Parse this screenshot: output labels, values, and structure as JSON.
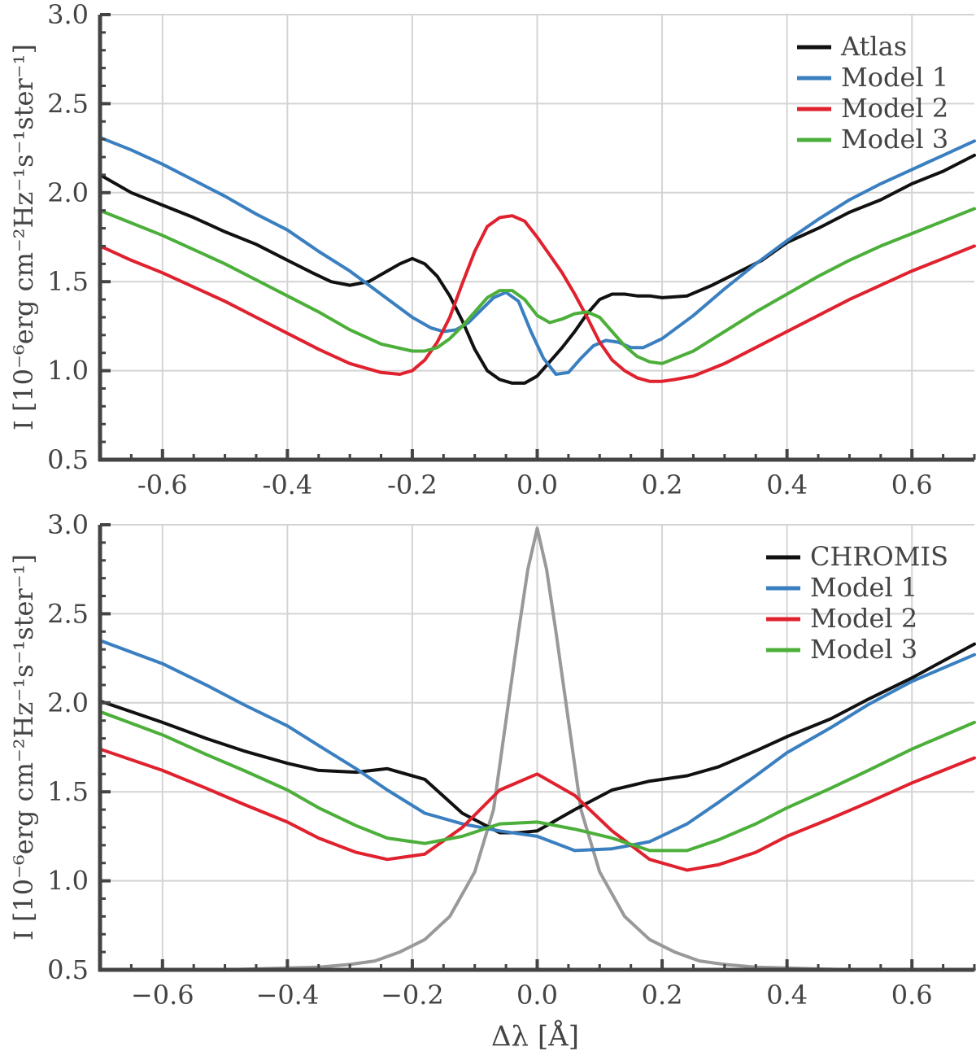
{
  "figure": {
    "xlabel": "Δλ [Å]"
  },
  "chart_data": [
    {
      "type": "line",
      "title": "",
      "xlabel": "",
      "ylabel": "I [10⁻⁶erg cm⁻²Hz⁻¹s⁻¹ster⁻¹]",
      "xlim": [
        -0.7,
        0.7
      ],
      "ylim": [
        0.5,
        3.0
      ],
      "xticks": [
        "-0.6",
        "-0.4",
        "-0.2",
        "0.0",
        "0.2",
        "0.4",
        "0.6"
      ],
      "yticks": [
        "0.5",
        "1.0",
        "1.5",
        "2.0",
        "2.5",
        "3.0"
      ],
      "legend": {
        "position": "top-right"
      },
      "series": [
        {
          "name": "Atlas",
          "color": "#111111",
          "in_legend": true,
          "x": [
            -0.7,
            -0.65,
            -0.6,
            -0.55,
            -0.5,
            -0.45,
            -0.4,
            -0.36,
            -0.33,
            -0.3,
            -0.27,
            -0.24,
            -0.22,
            -0.2,
            -0.18,
            -0.16,
            -0.14,
            -0.12,
            -0.1,
            -0.08,
            -0.06,
            -0.04,
            -0.02,
            0.0,
            0.02,
            0.04,
            0.06,
            0.08,
            0.1,
            0.12,
            0.14,
            0.16,
            0.18,
            0.2,
            0.24,
            0.28,
            0.32,
            0.36,
            0.4,
            0.45,
            0.5,
            0.55,
            0.6,
            0.65,
            0.7
          ],
          "y": [
            2.1,
            2.0,
            1.93,
            1.86,
            1.78,
            1.71,
            1.62,
            1.55,
            1.5,
            1.48,
            1.5,
            1.56,
            1.6,
            1.63,
            1.6,
            1.53,
            1.42,
            1.28,
            1.12,
            1.0,
            0.95,
            0.93,
            0.93,
            0.97,
            1.05,
            1.13,
            1.22,
            1.32,
            1.4,
            1.43,
            1.43,
            1.42,
            1.42,
            1.41,
            1.42,
            1.48,
            1.55,
            1.62,
            1.72,
            1.8,
            1.89,
            1.96,
            2.05,
            2.12,
            2.21
          ]
        },
        {
          "name": "Model 1",
          "color": "#3a7fc0",
          "in_legend": true,
          "x": [
            -0.7,
            -0.65,
            -0.6,
            -0.55,
            -0.5,
            -0.45,
            -0.4,
            -0.35,
            -0.3,
            -0.25,
            -0.2,
            -0.17,
            -0.15,
            -0.13,
            -0.11,
            -0.09,
            -0.07,
            -0.05,
            -0.03,
            -0.01,
            0.01,
            0.03,
            0.05,
            0.07,
            0.09,
            0.11,
            0.13,
            0.15,
            0.17,
            0.2,
            0.25,
            0.3,
            0.35,
            0.4,
            0.45,
            0.5,
            0.55,
            0.6,
            0.65,
            0.7
          ],
          "y": [
            2.31,
            2.24,
            2.16,
            2.07,
            1.98,
            1.88,
            1.79,
            1.67,
            1.56,
            1.43,
            1.3,
            1.24,
            1.22,
            1.23,
            1.27,
            1.34,
            1.41,
            1.44,
            1.39,
            1.22,
            1.07,
            0.98,
            0.99,
            1.07,
            1.14,
            1.17,
            1.16,
            1.13,
            1.13,
            1.18,
            1.31,
            1.46,
            1.6,
            1.73,
            1.85,
            1.96,
            2.05,
            2.13,
            2.21,
            2.29
          ]
        },
        {
          "name": "Model 2",
          "color": "#e0212e",
          "in_legend": true,
          "x": [
            -0.7,
            -0.65,
            -0.6,
            -0.55,
            -0.5,
            -0.45,
            -0.4,
            -0.35,
            -0.3,
            -0.25,
            -0.22,
            -0.2,
            -0.18,
            -0.16,
            -0.14,
            -0.12,
            -0.1,
            -0.08,
            -0.06,
            -0.04,
            -0.02,
            0.0,
            0.02,
            0.04,
            0.06,
            0.08,
            0.1,
            0.12,
            0.14,
            0.16,
            0.18,
            0.2,
            0.22,
            0.25,
            0.3,
            0.35,
            0.4,
            0.45,
            0.5,
            0.55,
            0.6,
            0.65,
            0.7
          ],
          "y": [
            1.7,
            1.62,
            1.55,
            1.47,
            1.39,
            1.3,
            1.21,
            1.12,
            1.04,
            0.99,
            0.98,
            1.0,
            1.06,
            1.16,
            1.3,
            1.49,
            1.67,
            1.81,
            1.86,
            1.87,
            1.84,
            1.75,
            1.65,
            1.55,
            1.43,
            1.3,
            1.16,
            1.06,
            1.0,
            0.96,
            0.94,
            0.94,
            0.95,
            0.97,
            1.04,
            1.13,
            1.22,
            1.31,
            1.4,
            1.48,
            1.56,
            1.63,
            1.7
          ]
        },
        {
          "name": "Model 3",
          "color": "#4caf3a",
          "in_legend": true,
          "x": [
            -0.7,
            -0.65,
            -0.6,
            -0.55,
            -0.5,
            -0.45,
            -0.4,
            -0.35,
            -0.3,
            -0.25,
            -0.2,
            -0.18,
            -0.16,
            -0.14,
            -0.12,
            -0.1,
            -0.08,
            -0.06,
            -0.04,
            -0.02,
            0.0,
            0.02,
            0.04,
            0.06,
            0.08,
            0.1,
            0.12,
            0.14,
            0.16,
            0.18,
            0.2,
            0.25,
            0.3,
            0.35,
            0.4,
            0.45,
            0.5,
            0.55,
            0.6,
            0.65,
            0.7
          ],
          "y": [
            1.9,
            1.83,
            1.76,
            1.68,
            1.6,
            1.51,
            1.42,
            1.33,
            1.23,
            1.15,
            1.11,
            1.11,
            1.13,
            1.18,
            1.25,
            1.33,
            1.41,
            1.45,
            1.45,
            1.4,
            1.31,
            1.27,
            1.29,
            1.32,
            1.33,
            1.3,
            1.22,
            1.14,
            1.08,
            1.05,
            1.04,
            1.11,
            1.22,
            1.33,
            1.43,
            1.53,
            1.62,
            1.7,
            1.77,
            1.84,
            1.91
          ]
        }
      ]
    },
    {
      "type": "line",
      "title": "",
      "xlabel": "Δλ [Å]",
      "ylabel": "I [10⁻⁶erg cm⁻²Hz⁻¹s⁻¹ster⁻¹]",
      "xlim": [
        -0.7,
        0.7
      ],
      "ylim": [
        0.5,
        3.0
      ],
      "xticks": [
        "−0.6",
        "−0.4",
        "−0.2",
        "0.0",
        "0.2",
        "0.4",
        "0.6"
      ],
      "yticks": [
        "0.5",
        "1.0",
        "1.5",
        "2.0",
        "2.5",
        "3.0"
      ],
      "legend": {
        "position": "top-right"
      },
      "series": [
        {
          "name": "CHROMIS",
          "color": "#111111",
          "in_legend": true,
          "x": [
            -0.7,
            -0.6,
            -0.53,
            -0.47,
            -0.4,
            -0.35,
            -0.29,
            -0.24,
            -0.18,
            -0.12,
            -0.06,
            -0.03,
            0.0,
            0.06,
            0.12,
            0.18,
            0.24,
            0.29,
            0.35,
            0.4,
            0.47,
            0.53,
            0.6,
            0.7
          ],
          "y": [
            2.01,
            1.89,
            1.8,
            1.73,
            1.66,
            1.62,
            1.61,
            1.63,
            1.57,
            1.38,
            1.27,
            1.27,
            1.28,
            1.4,
            1.51,
            1.56,
            1.59,
            1.64,
            1.73,
            1.81,
            1.91,
            2.02,
            2.14,
            2.33
          ]
        },
        {
          "name": "Model 1",
          "color": "#3a7fc0",
          "in_legend": true,
          "x": [
            -0.7,
            -0.6,
            -0.53,
            -0.47,
            -0.4,
            -0.35,
            -0.29,
            -0.24,
            -0.18,
            -0.12,
            -0.06,
            0.0,
            0.06,
            0.12,
            0.18,
            0.24,
            0.29,
            0.35,
            0.4,
            0.47,
            0.53,
            0.6,
            0.7
          ],
          "y": [
            2.35,
            2.22,
            2.1,
            1.99,
            1.87,
            1.76,
            1.63,
            1.51,
            1.38,
            1.32,
            1.28,
            1.25,
            1.17,
            1.18,
            1.22,
            1.32,
            1.44,
            1.59,
            1.72,
            1.86,
            1.99,
            2.12,
            2.27
          ]
        },
        {
          "name": "Model 2",
          "color": "#e0212e",
          "in_legend": true,
          "x": [
            -0.7,
            -0.6,
            -0.53,
            -0.47,
            -0.4,
            -0.35,
            -0.29,
            -0.24,
            -0.18,
            -0.12,
            -0.06,
            0.0,
            0.06,
            0.12,
            0.18,
            0.24,
            0.29,
            0.35,
            0.4,
            0.47,
            0.53,
            0.6,
            0.7
          ],
          "y": [
            1.74,
            1.62,
            1.52,
            1.43,
            1.33,
            1.24,
            1.16,
            1.12,
            1.15,
            1.3,
            1.51,
            1.6,
            1.48,
            1.28,
            1.12,
            1.06,
            1.09,
            1.16,
            1.25,
            1.35,
            1.44,
            1.55,
            1.69
          ]
        },
        {
          "name": "Model 3",
          "color": "#4caf3a",
          "in_legend": true,
          "x": [
            -0.7,
            -0.6,
            -0.53,
            -0.47,
            -0.4,
            -0.35,
            -0.29,
            -0.24,
            -0.18,
            -0.12,
            -0.06,
            0.0,
            0.06,
            0.12,
            0.18,
            0.24,
            0.29,
            0.35,
            0.4,
            0.47,
            0.53,
            0.6,
            0.7
          ],
          "y": [
            1.95,
            1.82,
            1.71,
            1.62,
            1.51,
            1.41,
            1.31,
            1.24,
            1.21,
            1.25,
            1.32,
            1.33,
            1.29,
            1.24,
            1.17,
            1.17,
            1.23,
            1.32,
            1.41,
            1.52,
            1.62,
            1.74,
            1.89
          ]
        },
        {
          "name": "",
          "color": "#999999",
          "in_legend": false,
          "x": [
            -0.7,
            -0.6,
            -0.5,
            -0.4,
            -0.35,
            -0.3,
            -0.26,
            -0.22,
            -0.18,
            -0.14,
            -0.1,
            -0.07,
            -0.05,
            -0.03,
            -0.015,
            0.0,
            0.015,
            0.03,
            0.05,
            0.07,
            0.1,
            0.14,
            0.18,
            0.22,
            0.26,
            0.3,
            0.35,
            0.4,
            0.5,
            0.6,
            0.7
          ],
          "y": [
            0.5,
            0.5,
            0.5,
            0.51,
            0.515,
            0.53,
            0.55,
            0.6,
            0.67,
            0.8,
            1.05,
            1.4,
            1.9,
            2.4,
            2.75,
            2.98,
            2.75,
            2.4,
            1.9,
            1.4,
            1.05,
            0.8,
            0.67,
            0.6,
            0.55,
            0.53,
            0.515,
            0.51,
            0.5,
            0.5,
            0.5
          ]
        }
      ]
    }
  ]
}
